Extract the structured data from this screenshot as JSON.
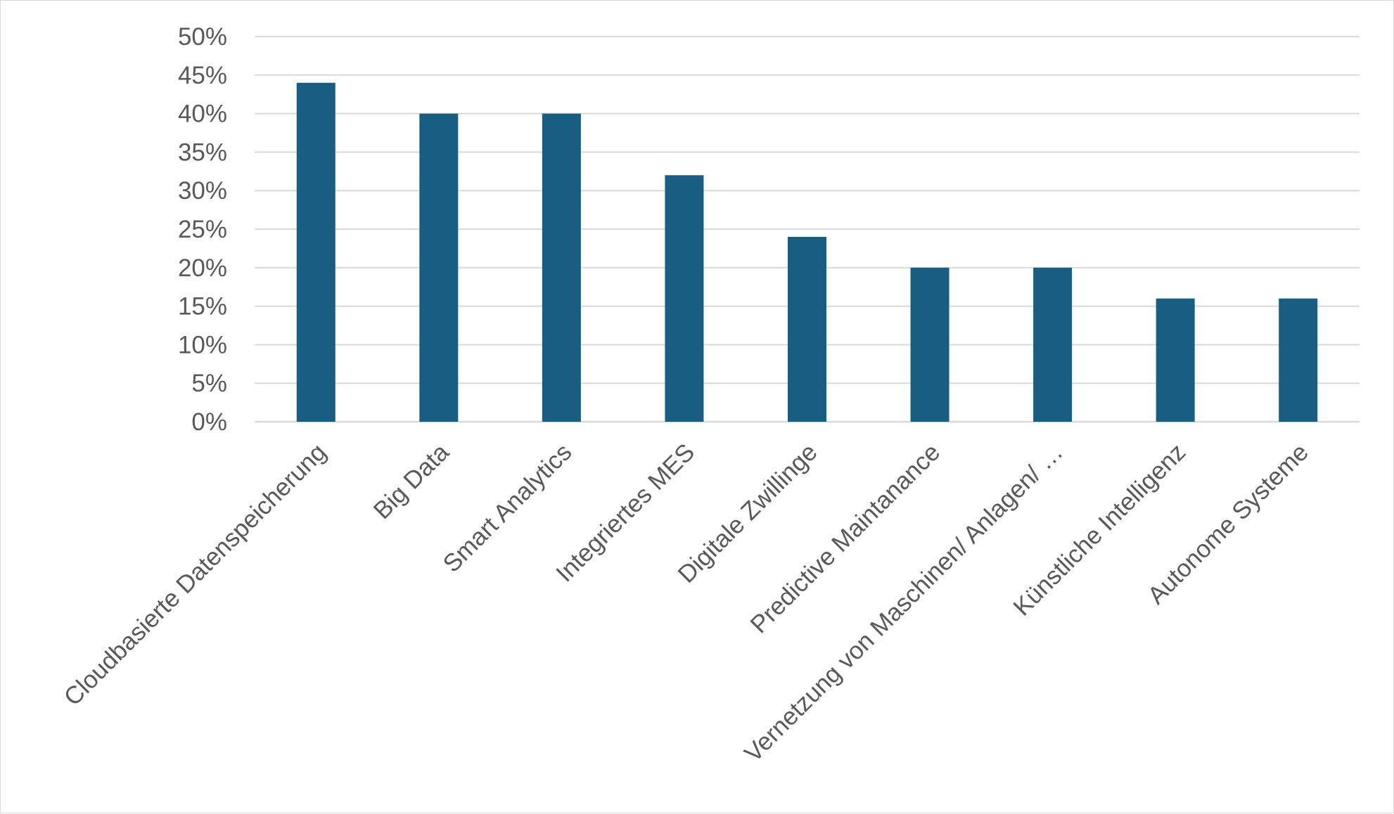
{
  "chart_data": {
    "type": "bar",
    "title": "",
    "xlabel": "",
    "ylabel": "",
    "categories": [
      "Cloudbasierte Datenspeicherung",
      "Big Data",
      "Smart Analytics",
      "Integriertes MES",
      "Digitale Zwillinge",
      "Predictive Maintanance",
      "Vernetzung von Maschinen/ Anlagen/ …",
      "Künstliche Intelligenz",
      "Autonome Systeme"
    ],
    "values": [
      0.44,
      0.4,
      0.4,
      0.32,
      0.24,
      0.2,
      0.2,
      0.16,
      0.16
    ],
    "ylim": [
      0,
      0.5
    ],
    "y_ticks": [
      "0%",
      "5%",
      "10%",
      "15%",
      "20%",
      "25%",
      "30%",
      "35%",
      "40%",
      "45%",
      "50%"
    ],
    "grid": true,
    "legend": "none",
    "bar_color": "#175e82",
    "grid_color": "#d9d9d9",
    "text_color": "#595959"
  }
}
